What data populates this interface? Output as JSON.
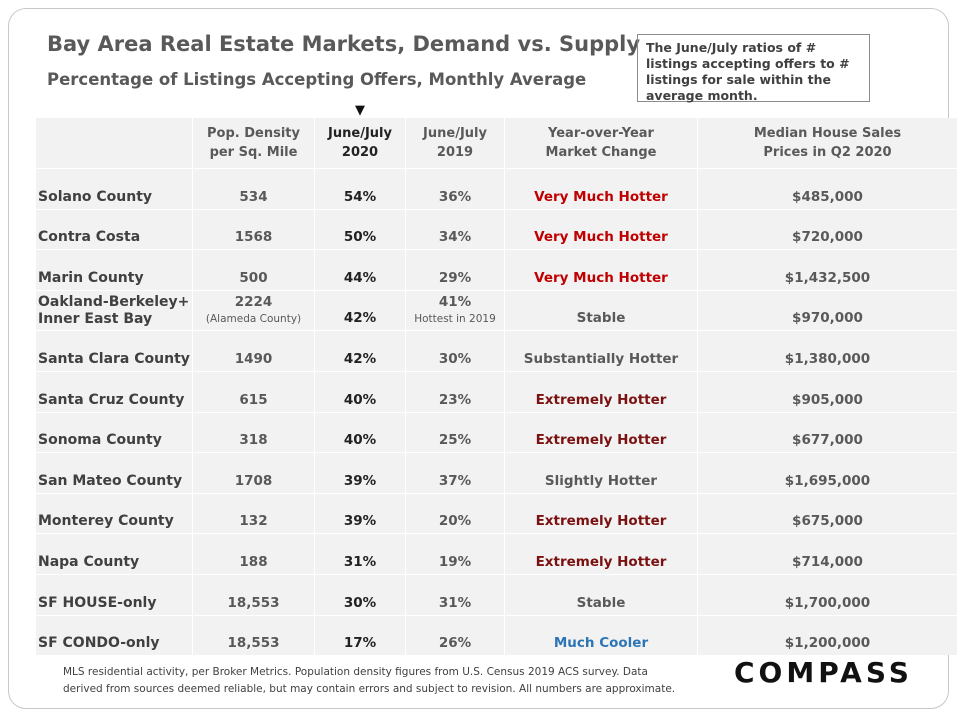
{
  "title": "Bay Area Real Estate Markets, Demand vs. Supply",
  "subtitle": "Percentage of Listings Accepting Offers, Monthly Average",
  "note": "The June/July ratios of # listings accepting offers to # listings for sale within the average month.",
  "arrow": "▼",
  "footer": {
    "line1": "MLS residential activity, per Broker Metrics. Population density figures from U.S. Census 2019 ACS survey. Data",
    "line2": "derived from sources deemed reliable, but may contain errors and subject to revision.  All numbers are approximate."
  },
  "logo": "COMPASS",
  "colors": {
    "very_much_hotter": "#c00000",
    "extremely_hotter": "#7b1010",
    "much_cooler": "#2e75b6",
    "neutral": "#595959"
  },
  "chart_data": {
    "type": "table",
    "columns": [
      {
        "line1": "",
        "line2": ""
      },
      {
        "line1": "Pop. Density",
        "line2": "per Sq. Mile"
      },
      {
        "line1": "June/July",
        "line2": "2020"
      },
      {
        "line1": "June/July",
        "line2": "2019"
      },
      {
        "line1": "Year-over-Year",
        "line2": "Market Change"
      },
      {
        "line1": "Median House Sales",
        "line2": "Prices in Q2 2020"
      }
    ],
    "rows": [
      {
        "name": "Solano County",
        "density": "534",
        "r2020": "54%",
        "r2019": "36%",
        "change": "Very Much Hotter",
        "change_color": "#c00000",
        "price": "$485,000"
      },
      {
        "name": "Contra Costa",
        "density": "1568",
        "r2020": "50%",
        "r2019": "34%",
        "change": "Very Much Hotter",
        "change_color": "#c00000",
        "price": "$720,000"
      },
      {
        "name": "Marin County",
        "density": "500",
        "r2020": "44%",
        "r2019": "29%",
        "change": "Very Much Hotter",
        "change_color": "#c00000",
        "price": "$1,432,500"
      },
      {
        "name": "Oakland-Berkeley+",
        "name2": "Inner East Bay",
        "density": "2224",
        "density_note": "(Alameda County)",
        "r2020": "42%",
        "r2019": "41%",
        "r2019_note": "Hottest in 2019",
        "change": "Stable",
        "change_color": "#595959",
        "price": "$970,000"
      },
      {
        "name": "Santa Clara County",
        "density": "1490",
        "r2020": "42%",
        "r2019": "30%",
        "change": "Substantially Hotter",
        "change_color": "#595959",
        "price": "$1,380,000"
      },
      {
        "name": "Santa Cruz County",
        "density": "615",
        "r2020": "40%",
        "r2019": "23%",
        "change": "Extremely Hotter",
        "change_color": "#7b1010",
        "price": "$905,000"
      },
      {
        "name": "Sonoma County",
        "density": "318",
        "r2020": "40%",
        "r2019": "25%",
        "change": "Extremely Hotter",
        "change_color": "#7b1010",
        "price": "$677,000"
      },
      {
        "name": "San Mateo County",
        "density": "1708",
        "r2020": "39%",
        "r2019": "37%",
        "change": "Slightly Hotter",
        "change_color": "#595959",
        "price": "$1,695,000"
      },
      {
        "name": "Monterey County",
        "density": "132",
        "r2020": "39%",
        "r2019": "20%",
        "change": "Extremely Hotter",
        "change_color": "#7b1010",
        "price": "$675,000"
      },
      {
        "name": "Napa County",
        "density": "188",
        "r2020": "31%",
        "r2019": "19%",
        "change": "Extremely Hotter",
        "change_color": "#7b1010",
        "price": "$714,000"
      },
      {
        "name": "SF HOUSE-only",
        "density": "18,553",
        "r2020": "30%",
        "r2019": "31%",
        "change": "Stable",
        "change_color": "#595959",
        "price": "$1,700,000"
      },
      {
        "name": "SF CONDO-only",
        "density": "18,553",
        "r2020": "17%",
        "r2019": "26%",
        "change": "Much Cooler",
        "change_color": "#2e75b6",
        "price": "$1,200,000"
      }
    ]
  }
}
